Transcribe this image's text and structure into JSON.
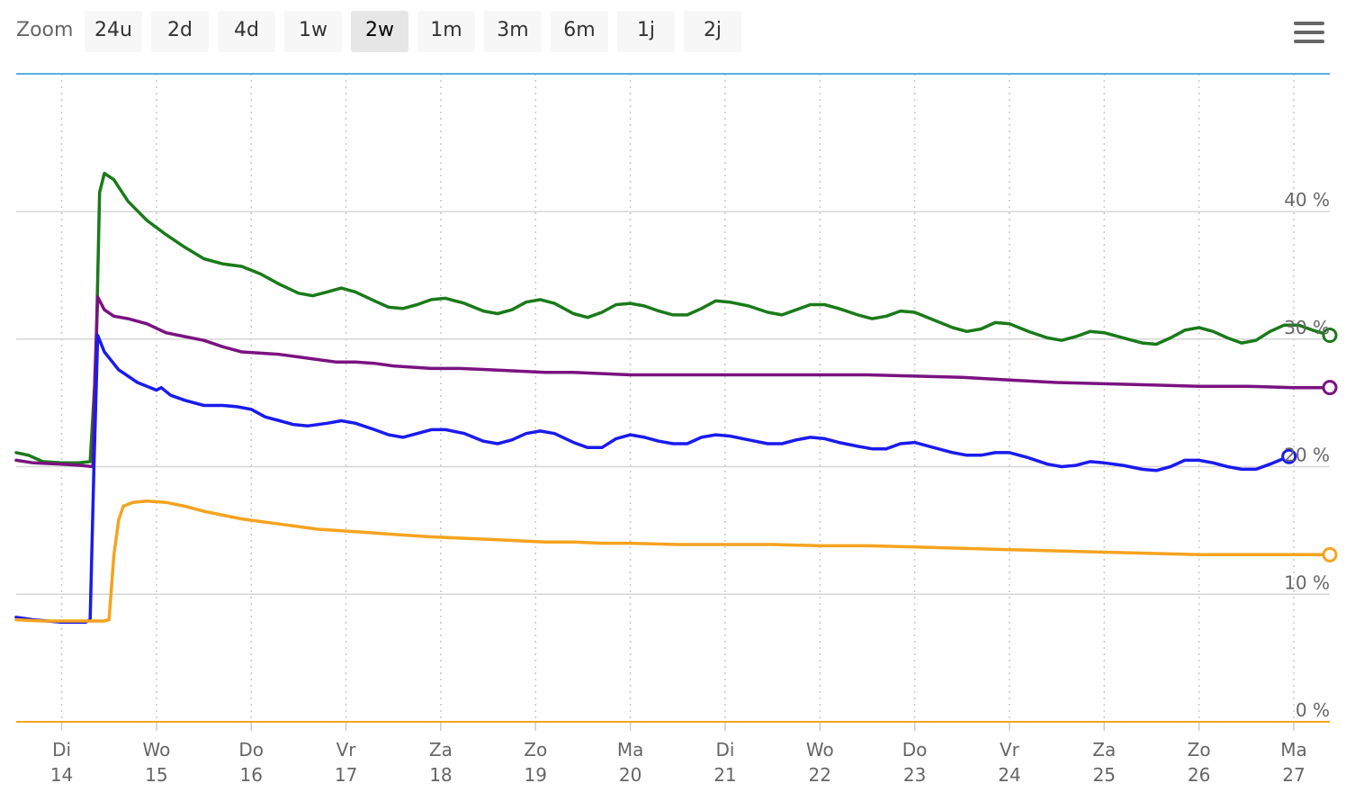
{
  "zoom": {
    "label": "Zoom",
    "buttons": [
      "24u",
      "2d",
      "4d",
      "1w",
      "2w",
      "1m",
      "3m",
      "6m",
      "1j",
      "2j"
    ],
    "selected": "2w"
  },
  "menu": {
    "icon": "hamburger-menu-icon"
  },
  "chart_data": {
    "type": "line",
    "title": "",
    "xlabel": "",
    "ylabel": "",
    "x_ticks": [
      {
        "day": "Di",
        "date": "14",
        "x": 14
      },
      {
        "day": "Wo",
        "date": "15",
        "x": 15
      },
      {
        "day": "Do",
        "date": "16",
        "x": 16
      },
      {
        "day": "Vr",
        "date": "17",
        "x": 17
      },
      {
        "day": "Za",
        "date": "18",
        "x": 18
      },
      {
        "day": "Zo",
        "date": "19",
        "x": 19
      },
      {
        "day": "Ma",
        "date": "20",
        "x": 20
      },
      {
        "day": "Di",
        "date": "21",
        "x": 21
      },
      {
        "day": "Wo",
        "date": "22",
        "x": 22
      },
      {
        "day": "Do",
        "date": "23",
        "x": 23
      },
      {
        "day": "Vr",
        "date": "24",
        "x": 24
      },
      {
        "day": "Za",
        "date": "25",
        "x": 25
      },
      {
        "day": "Zo",
        "date": "26",
        "x": 26
      },
      {
        "day": "Ma",
        "date": "27",
        "x": 27
      }
    ],
    "xlim": [
      13.52,
      27.38
    ],
    "ylim": [
      0,
      50.8
    ],
    "y_ticks": [
      {
        "label": "0 %",
        "value": 0
      },
      {
        "label": "10 %",
        "value": 10
      },
      {
        "label": "20 %",
        "value": 20
      },
      {
        "label": "30 %",
        "value": 30
      },
      {
        "label": "40 %",
        "value": 40
      }
    ],
    "grid": true,
    "series": [
      {
        "color": "#1a7a1a",
        "points": [
          [
            13.52,
            21.1
          ],
          [
            13.65,
            20.9
          ],
          [
            13.8,
            20.4
          ],
          [
            14.0,
            20.3
          ],
          [
            14.18,
            20.3
          ],
          [
            14.3,
            20.4
          ],
          [
            14.36,
            28.0
          ],
          [
            14.4,
            41.5
          ],
          [
            14.45,
            43.0
          ],
          [
            14.55,
            42.5
          ],
          [
            14.7,
            40.8
          ],
          [
            14.9,
            39.3
          ],
          [
            15.1,
            38.2
          ],
          [
            15.3,
            37.2
          ],
          [
            15.5,
            36.3
          ],
          [
            15.7,
            35.9
          ],
          [
            15.9,
            35.7
          ],
          [
            16.1,
            35.1
          ],
          [
            16.3,
            34.3
          ],
          [
            16.5,
            33.6
          ],
          [
            16.65,
            33.4
          ],
          [
            16.8,
            33.7
          ],
          [
            16.95,
            34.0
          ],
          [
            17.1,
            33.7
          ],
          [
            17.3,
            33.0
          ],
          [
            17.45,
            32.5
          ],
          [
            17.6,
            32.4
          ],
          [
            17.75,
            32.7
          ],
          [
            17.9,
            33.1
          ],
          [
            18.05,
            33.2
          ],
          [
            18.25,
            32.8
          ],
          [
            18.45,
            32.2
          ],
          [
            18.6,
            32.0
          ],
          [
            18.75,
            32.3
          ],
          [
            18.9,
            32.9
          ],
          [
            19.05,
            33.1
          ],
          [
            19.2,
            32.8
          ],
          [
            19.4,
            32.0
          ],
          [
            19.55,
            31.7
          ],
          [
            19.7,
            32.1
          ],
          [
            19.85,
            32.7
          ],
          [
            20.0,
            32.8
          ],
          [
            20.15,
            32.6
          ],
          [
            20.3,
            32.2
          ],
          [
            20.45,
            31.9
          ],
          [
            20.6,
            31.9
          ],
          [
            20.75,
            32.4
          ],
          [
            20.9,
            33.0
          ],
          [
            21.05,
            32.9
          ],
          [
            21.25,
            32.6
          ],
          [
            21.45,
            32.1
          ],
          [
            21.6,
            31.9
          ],
          [
            21.75,
            32.3
          ],
          [
            21.9,
            32.7
          ],
          [
            22.05,
            32.7
          ],
          [
            22.2,
            32.4
          ],
          [
            22.4,
            31.9
          ],
          [
            22.55,
            31.6
          ],
          [
            22.7,
            31.8
          ],
          [
            22.85,
            32.2
          ],
          [
            23.0,
            32.1
          ],
          [
            23.2,
            31.5
          ],
          [
            23.4,
            30.9
          ],
          [
            23.55,
            30.6
          ],
          [
            23.7,
            30.8
          ],
          [
            23.85,
            31.3
          ],
          [
            24.0,
            31.2
          ],
          [
            24.2,
            30.6
          ],
          [
            24.4,
            30.1
          ],
          [
            24.55,
            29.9
          ],
          [
            24.7,
            30.2
          ],
          [
            24.85,
            30.6
          ],
          [
            25.0,
            30.5
          ],
          [
            25.2,
            30.1
          ],
          [
            25.4,
            29.7
          ],
          [
            25.55,
            29.6
          ],
          [
            25.7,
            30.1
          ],
          [
            25.85,
            30.7
          ],
          [
            26.0,
            30.9
          ],
          [
            26.15,
            30.6
          ],
          [
            26.3,
            30.1
          ],
          [
            26.45,
            29.7
          ],
          [
            26.6,
            29.9
          ],
          [
            26.75,
            30.6
          ],
          [
            26.9,
            31.1
          ],
          [
            27.05,
            31.1
          ],
          [
            27.2,
            30.7
          ],
          [
            27.38,
            30.3
          ]
        ],
        "end_marker": true
      },
      {
        "color": "#7a1280",
        "points": [
          [
            13.52,
            20.5
          ],
          [
            13.7,
            20.3
          ],
          [
            14.0,
            20.2
          ],
          [
            14.2,
            20.1
          ],
          [
            14.33,
            20.0
          ],
          [
            14.35,
            27.0
          ],
          [
            14.38,
            33.3
          ],
          [
            14.45,
            32.3
          ],
          [
            14.55,
            31.8
          ],
          [
            14.7,
            31.6
          ],
          [
            14.9,
            31.2
          ],
          [
            15.1,
            30.5
          ],
          [
            15.3,
            30.2
          ],
          [
            15.5,
            29.9
          ],
          [
            15.7,
            29.4
          ],
          [
            15.9,
            29.0
          ],
          [
            16.1,
            28.9
          ],
          [
            16.3,
            28.8
          ],
          [
            16.5,
            28.6
          ],
          [
            16.7,
            28.4
          ],
          [
            16.9,
            28.2
          ],
          [
            17.1,
            28.2
          ],
          [
            17.3,
            28.1
          ],
          [
            17.5,
            27.9
          ],
          [
            17.7,
            27.8
          ],
          [
            17.9,
            27.7
          ],
          [
            18.2,
            27.7
          ],
          [
            18.5,
            27.6
          ],
          [
            18.8,
            27.5
          ],
          [
            19.1,
            27.4
          ],
          [
            19.4,
            27.4
          ],
          [
            19.7,
            27.3
          ],
          [
            20.0,
            27.2
          ],
          [
            20.5,
            27.2
          ],
          [
            21.0,
            27.2
          ],
          [
            21.5,
            27.2
          ],
          [
            22.0,
            27.2
          ],
          [
            22.5,
            27.2
          ],
          [
            23.0,
            27.1
          ],
          [
            23.5,
            27.0
          ],
          [
            24.0,
            26.8
          ],
          [
            24.5,
            26.6
          ],
          [
            25.0,
            26.5
          ],
          [
            25.5,
            26.4
          ],
          [
            26.0,
            26.3
          ],
          [
            26.5,
            26.3
          ],
          [
            27.0,
            26.2
          ],
          [
            27.38,
            26.2
          ]
        ],
        "end_marker": true
      },
      {
        "color": "#1a1aee",
        "points": [
          [
            13.52,
            8.2
          ],
          [
            13.7,
            8.0
          ],
          [
            14.0,
            7.8
          ],
          [
            14.25,
            7.8
          ],
          [
            14.3,
            8.0
          ],
          [
            14.34,
            20.0
          ],
          [
            14.38,
            30.3
          ],
          [
            14.45,
            29.0
          ],
          [
            14.6,
            27.6
          ],
          [
            14.8,
            26.6
          ],
          [
            15.0,
            26.0
          ],
          [
            15.05,
            26.2
          ],
          [
            15.15,
            25.6
          ],
          [
            15.3,
            25.2
          ],
          [
            15.5,
            24.8
          ],
          [
            15.7,
            24.8
          ],
          [
            15.85,
            24.7
          ],
          [
            16.0,
            24.5
          ],
          [
            16.15,
            23.9
          ],
          [
            16.3,
            23.6
          ],
          [
            16.45,
            23.3
          ],
          [
            16.6,
            23.2
          ],
          [
            16.8,
            23.4
          ],
          [
            16.95,
            23.6
          ],
          [
            17.1,
            23.4
          ],
          [
            17.3,
            22.9
          ],
          [
            17.45,
            22.5
          ],
          [
            17.6,
            22.3
          ],
          [
            17.75,
            22.6
          ],
          [
            17.9,
            22.9
          ],
          [
            18.05,
            22.9
          ],
          [
            18.25,
            22.6
          ],
          [
            18.45,
            22.0
          ],
          [
            18.6,
            21.8
          ],
          [
            18.75,
            22.1
          ],
          [
            18.9,
            22.6
          ],
          [
            19.05,
            22.8
          ],
          [
            19.2,
            22.6
          ],
          [
            19.4,
            21.9
          ],
          [
            19.55,
            21.5
          ],
          [
            19.7,
            21.5
          ],
          [
            19.85,
            22.2
          ],
          [
            20.0,
            22.5
          ],
          [
            20.15,
            22.3
          ],
          [
            20.3,
            22.0
          ],
          [
            20.45,
            21.8
          ],
          [
            20.6,
            21.8
          ],
          [
            20.75,
            22.3
          ],
          [
            20.9,
            22.5
          ],
          [
            21.05,
            22.4
          ],
          [
            21.25,
            22.1
          ],
          [
            21.45,
            21.8
          ],
          [
            21.6,
            21.8
          ],
          [
            21.75,
            22.1
          ],
          [
            21.9,
            22.3
          ],
          [
            22.05,
            22.2
          ],
          [
            22.2,
            21.9
          ],
          [
            22.4,
            21.6
          ],
          [
            22.55,
            21.4
          ],
          [
            22.7,
            21.4
          ],
          [
            22.85,
            21.8
          ],
          [
            23.0,
            21.9
          ],
          [
            23.2,
            21.5
          ],
          [
            23.4,
            21.1
          ],
          [
            23.55,
            20.9
          ],
          [
            23.7,
            20.9
          ],
          [
            23.85,
            21.1
          ],
          [
            24.0,
            21.1
          ],
          [
            24.2,
            20.7
          ],
          [
            24.4,
            20.2
          ],
          [
            24.55,
            20.0
          ],
          [
            24.7,
            20.1
          ],
          [
            24.85,
            20.4
          ],
          [
            25.0,
            20.3
          ],
          [
            25.2,
            20.1
          ],
          [
            25.4,
            19.8
          ],
          [
            25.55,
            19.7
          ],
          [
            25.7,
            20.0
          ],
          [
            25.85,
            20.5
          ],
          [
            26.0,
            20.5
          ],
          [
            26.15,
            20.3
          ],
          [
            26.3,
            20.0
          ],
          [
            26.45,
            19.8
          ],
          [
            26.6,
            19.8
          ],
          [
            26.75,
            20.2
          ],
          [
            26.85,
            20.5
          ],
          [
            26.95,
            20.8
          ]
        ],
        "end_marker": true
      },
      {
        "color": "#f5a31f",
        "points": [
          [
            13.52,
            8.0
          ],
          [
            13.8,
            7.9
          ],
          [
            14.0,
            7.9
          ],
          [
            14.3,
            7.9
          ],
          [
            14.45,
            7.9
          ],
          [
            14.5,
            8.0
          ],
          [
            14.55,
            13.0
          ],
          [
            14.6,
            15.8
          ],
          [
            14.65,
            16.9
          ],
          [
            14.75,
            17.2
          ],
          [
            14.9,
            17.3
          ],
          [
            15.1,
            17.2
          ],
          [
            15.3,
            16.9
          ],
          [
            15.5,
            16.5
          ],
          [
            15.7,
            16.2
          ],
          [
            15.9,
            15.9
          ],
          [
            16.1,
            15.7
          ],
          [
            16.3,
            15.5
          ],
          [
            16.5,
            15.3
          ],
          [
            16.7,
            15.1
          ],
          [
            16.9,
            15.0
          ],
          [
            17.1,
            14.9
          ],
          [
            17.3,
            14.8
          ],
          [
            17.5,
            14.7
          ],
          [
            17.7,
            14.6
          ],
          [
            17.9,
            14.5
          ],
          [
            18.2,
            14.4
          ],
          [
            18.5,
            14.3
          ],
          [
            18.8,
            14.2
          ],
          [
            19.1,
            14.1
          ],
          [
            19.4,
            14.1
          ],
          [
            19.7,
            14.0
          ],
          [
            20.0,
            14.0
          ],
          [
            20.5,
            13.9
          ],
          [
            21.0,
            13.9
          ],
          [
            21.5,
            13.9
          ],
          [
            22.0,
            13.8
          ],
          [
            22.5,
            13.8
          ],
          [
            23.0,
            13.7
          ],
          [
            23.5,
            13.6
          ],
          [
            24.0,
            13.5
          ],
          [
            24.5,
            13.4
          ],
          [
            25.0,
            13.3
          ],
          [
            25.5,
            13.2
          ],
          [
            26.0,
            13.1
          ],
          [
            26.5,
            13.1
          ],
          [
            27.0,
            13.1
          ],
          [
            27.38,
            13.1
          ]
        ],
        "end_marker": true
      }
    ]
  }
}
